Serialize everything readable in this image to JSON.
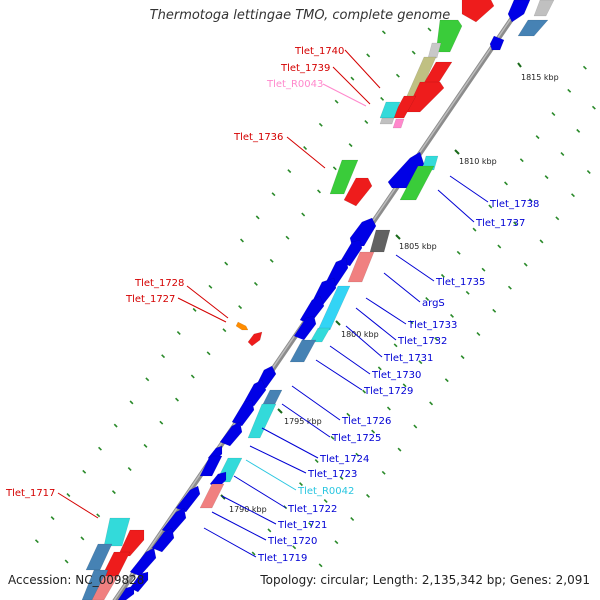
{
  "title": "Thermotoga lettingae TMO, complete genome",
  "footer": {
    "accession": "Accession: NC_009828",
    "topology": "Topology: circular; Length: 2,135,342 bp; Genes: 2,091"
  },
  "colors": {
    "backbone": "#8a8a8a",
    "forward_label": "#d40000",
    "reverse_label": "#0000d4",
    "rna_label": "#ff88cc",
    "rna2_label": "#29c6e0",
    "tick": "#2a8a2a"
  },
  "kbp_marks": [
    {
      "text": "1815 kbp",
      "kbp": 1815
    },
    {
      "text": "1810 kbp",
      "kbp": 1810
    },
    {
      "text": "1805 kbp",
      "kbp": 1805
    },
    {
      "text": "1800 kbp",
      "kbp": 1800
    },
    {
      "text": "1795 kbp",
      "kbp": 1795
    },
    {
      "text": "1790 kbp",
      "kbp": 1790
    }
  ],
  "labels_left": [
    {
      "text": "Tlet_1740",
      "color": "#d40000"
    },
    {
      "text": "Tlet_1739",
      "color": "#d40000"
    },
    {
      "text": "Tlet_R0043",
      "color": "#ff88cc"
    },
    {
      "text": "Tlet_1736",
      "color": "#d40000"
    },
    {
      "text": "Tlet_1728",
      "color": "#d40000"
    },
    {
      "text": "Tlet_1727",
      "color": "#d40000"
    },
    {
      "text": "Tlet_1717",
      "color": "#d40000"
    }
  ],
  "labels_right": [
    {
      "text": "Tlet_1738",
      "color": "#0000d4"
    },
    {
      "text": "Tlet_1737",
      "color": "#0000d4"
    },
    {
      "text": "Tlet_1735",
      "color": "#0000d4"
    },
    {
      "text": "argS",
      "color": "#0000d4"
    },
    {
      "text": "Tlet_1733",
      "color": "#0000d4"
    },
    {
      "text": "Tlet_1732",
      "color": "#0000d4"
    },
    {
      "text": "Tlet_1731",
      "color": "#0000d4"
    },
    {
      "text": "Tlet_1730",
      "color": "#0000d4"
    },
    {
      "text": "Tlet_1729",
      "color": "#0000d4"
    },
    {
      "text": "Tlet_1726",
      "color": "#0000d4"
    },
    {
      "text": "Tlet_1725",
      "color": "#0000d4"
    },
    {
      "text": "Tlet_1724",
      "color": "#0000d4"
    },
    {
      "text": "Tlet_1723",
      "color": "#0000d4"
    },
    {
      "text": "Tlet_R0042",
      "color": "#29c6e0"
    },
    {
      "text": "Tlet_1722",
      "color": "#0000d4"
    },
    {
      "text": "Tlet_1721",
      "color": "#0000d4"
    },
    {
      "text": "Tlet_1720",
      "color": "#0000d4"
    },
    {
      "text": "Tlet_1719",
      "color": "#0000d4"
    }
  ]
}
